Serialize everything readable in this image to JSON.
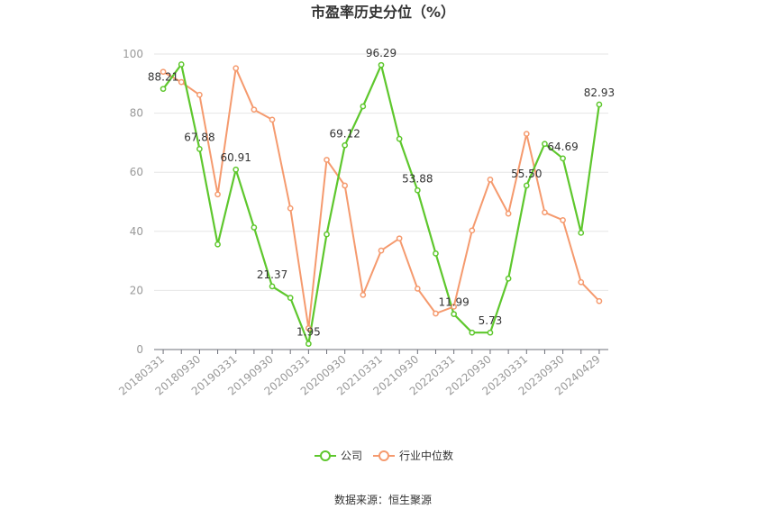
{
  "chart_data": {
    "type": "line",
    "title": "市盈率历史分位（%）",
    "xlabel": "",
    "ylabel": "",
    "ylim": [
      0,
      100
    ],
    "y_ticks": [
      0,
      20,
      40,
      60,
      80,
      100
    ],
    "grid": true,
    "legend_position": "bottom",
    "x": [
      "20180331",
      "20180630",
      "20180930",
      "20181231",
      "20190331",
      "20190630",
      "20190930",
      "20191231",
      "20200331",
      "20200630",
      "20200930",
      "20201231",
      "20210331",
      "20210630",
      "20210930",
      "20211231",
      "20220331",
      "20220630",
      "20220930",
      "20221231",
      "20230331",
      "20230630",
      "20230930",
      "20231231",
      "20240429"
    ],
    "x_tick_labels": [
      "20180331",
      "20180930",
      "20190331",
      "20190930",
      "20200331",
      "20200930",
      "20210331",
      "20210930",
      "20220331",
      "20220930",
      "20230331",
      "20230930",
      "20240429"
    ],
    "series": [
      {
        "name": "公司",
        "color": "#5ec72d",
        "values": [
          88.21,
          96.5,
          67.88,
          35.6,
          60.91,
          41.3,
          21.37,
          17.5,
          1.95,
          39.0,
          69.12,
          82.3,
          96.29,
          71.3,
          53.88,
          32.5,
          11.99,
          5.73,
          5.73,
          24.0,
          55.5,
          69.6,
          64.69,
          39.5,
          82.93
        ]
      },
      {
        "name": "行业中位数",
        "color": "#f59a6e",
        "values": [
          94.0,
          90.5,
          86.2,
          52.5,
          95.2,
          81.2,
          77.8,
          47.8,
          7.2,
          64.2,
          55.5,
          18.5,
          33.5,
          37.6,
          20.6,
          12.2,
          14.5,
          40.3,
          57.5,
          46.0,
          73.0,
          46.4,
          43.8,
          22.8,
          16.4
        ]
      }
    ],
    "data_labels": [
      {
        "series": 0,
        "index": 0,
        "text": "88.21"
      },
      {
        "series": 0,
        "index": 2,
        "text": "67.88"
      },
      {
        "series": 0,
        "index": 4,
        "text": "60.91"
      },
      {
        "series": 0,
        "index": 6,
        "text": "21.37"
      },
      {
        "series": 0,
        "index": 8,
        "text": "1.95"
      },
      {
        "series": 0,
        "index": 10,
        "text": "69.12"
      },
      {
        "series": 0,
        "index": 12,
        "text": "96.29"
      },
      {
        "series": 0,
        "index": 14,
        "text": "53.88"
      },
      {
        "series": 0,
        "index": 16,
        "text": "11.99"
      },
      {
        "series": 0,
        "index": 18,
        "text": "5.73"
      },
      {
        "series": 0,
        "index": 20,
        "text": "55.50"
      },
      {
        "series": 0,
        "index": 22,
        "text": "64.69"
      },
      {
        "series": 0,
        "index": 24,
        "text": "82.93"
      }
    ],
    "source": "数据来源：恒生聚源"
  }
}
